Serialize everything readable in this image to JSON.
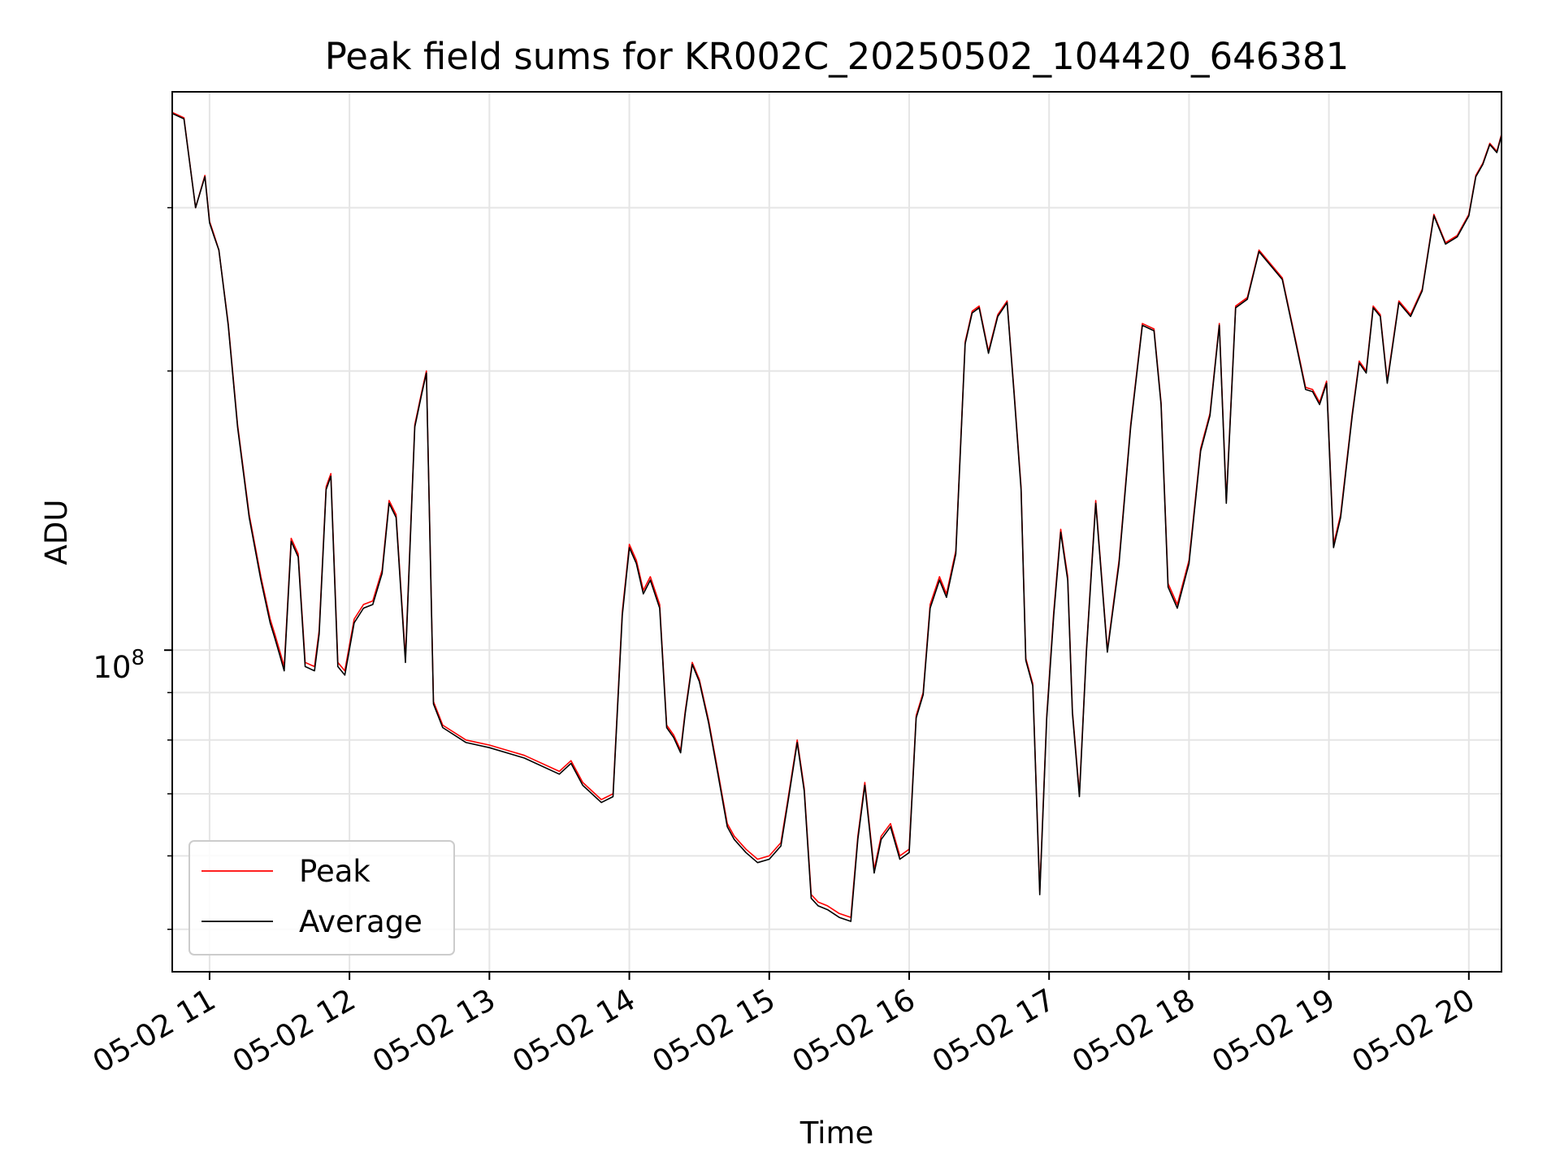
{
  "chart_data": {
    "type": "line",
    "title": "Peak field sums for KR002C_20250502_104420_646381",
    "xlabel": "Time",
    "ylabel": "ADU",
    "yscale": "log",
    "ylim": [
      45000000,
      400000000
    ],
    "xlim": [
      "05-02 10:44",
      "05-02 20:14"
    ],
    "grid": true,
    "legend_position": "lower-left",
    "x_tick_labels": [
      "05-02 11",
      "05-02 12",
      "05-02 13",
      "05-02 14",
      "05-02 15",
      "05-02 16",
      "05-02 17",
      "05-02 18",
      "05-02 19",
      "05-02 20"
    ],
    "y_tick_label": {
      "base": "10",
      "exponent": "8"
    },
    "colors": {
      "peak": "#ff0000",
      "average": "#000000",
      "grid": "#e5e5e5"
    },
    "x": [
      "05-02 10:44",
      "05-02 10:49",
      "05-02 10:54",
      "05-02 10:58",
      "05-02 11:00",
      "05-02 11:02",
      "05-02 11:04",
      "05-02 11:08",
      "05-02 11:12",
      "05-02 11:17",
      "05-02 11:22",
      "05-02 11:26",
      "05-02 11:28",
      "05-02 11:30",
      "05-02 11:32",
      "05-02 11:35",
      "05-02 11:38",
      "05-02 11:41",
      "05-02 11:45",
      "05-02 11:47",
      "05-02 11:50",
      "05-02 11:52",
      "05-02 11:55",
      "05-02 11:58",
      "05-02 12:02",
      "05-02 12:06",
      "05-02 12:10",
      "05-02 12:14",
      "05-02 12:17",
      "05-02 12:20",
      "05-02 12:24",
      "05-02 12:28",
      "05-02 12:31",
      "05-02 12:33",
      "05-02 12:36",
      "05-02 12:40",
      "05-02 12:50",
      "05-02 13:00",
      "05-02 13:15",
      "05-02 13:30",
      "05-02 13:35",
      "05-02 13:40",
      "05-02 13:48",
      "05-02 13:53",
      "05-02 13:57",
      "05-02 14:00",
      "05-02 14:03",
      "05-02 14:06",
      "05-02 14:09",
      "05-02 14:13",
      "05-02 14:16",
      "05-02 14:19",
      "05-02 14:22",
      "05-02 14:24",
      "05-02 14:27",
      "05-02 14:30",
      "05-02 14:34",
      "05-02 14:38",
      "05-02 14:42",
      "05-02 14:45",
      "05-02 14:50",
      "05-02 14:55",
      "05-02 15:00",
      "05-02 15:05",
      "05-02 15:08",
      "05-02 15:12",
      "05-02 15:15",
      "05-02 15:18",
      "05-02 15:21",
      "05-02 15:25",
      "05-02 15:30",
      "05-02 15:35",
      "05-02 15:38",
      "05-02 15:41",
      "05-02 15:45",
      "05-02 15:48",
      "05-02 15:52",
      "05-02 15:56",
      "05-02 16:00",
      "05-02 16:03",
      "05-02 16:06",
      "05-02 16:09",
      "05-02 16:13",
      "05-02 16:16",
      "05-02 16:20",
      "05-02 16:24",
      "05-02 16:27",
      "05-02 16:30",
      "05-02 16:34",
      "05-02 16:38",
      "05-02 16:42",
      "05-02 16:45",
      "05-02 16:48",
      "05-02 16:50",
      "05-02 16:53",
      "05-02 16:56",
      "05-02 16:59",
      "05-02 17:02",
      "05-02 17:05",
      "05-02 17:08",
      "05-02 17:10",
      "05-02 17:13",
      "05-02 17:16",
      "05-02 17:20",
      "05-02 17:25",
      "05-02 17:30",
      "05-02 17:35",
      "05-02 17:40",
      "05-02 17:45",
      "05-02 17:48",
      "05-02 17:51",
      "05-02 17:55",
      "05-02 18:00",
      "05-02 18:05",
      "05-02 18:09",
      "05-02 18:13",
      "05-02 18:16",
      "05-02 18:20",
      "05-02 18:25",
      "05-02 18:30",
      "05-02 18:40",
      "05-02 18:45",
      "05-02 18:50",
      "05-02 18:53",
      "05-02 18:56",
      "05-02 18:59",
      "05-02 19:02",
      "05-02 19:05",
      "05-02 19:10",
      "05-02 19:13",
      "05-02 19:16",
      "05-02 19:19",
      "05-02 19:22",
      "05-02 19:25",
      "05-02 19:30",
      "05-02 19:35",
      "05-02 19:40",
      "05-02 19:45",
      "05-02 19:50",
      "05-02 19:55",
      "05-02 20:00",
      "05-02 20:03",
      "05-02 20:06",
      "05-02 20:09",
      "05-02 20:12",
      "05-02 20:14"
    ],
    "series": [
      {
        "name": "Peak",
        "values": [
          380000000,
          375000000,
          300000000,
          325000000,
          290000000,
          280000000,
          270000000,
          225000000,
          175000000,
          140000000,
          120000000,
          108000000,
          104000000,
          100000000,
          96000000,
          132000000,
          127000000,
          97000000,
          96000000,
          105000000,
          150000000,
          155000000,
          97000000,
          95000000,
          108000000,
          112000000,
          113000000,
          122000000,
          145000000,
          140000000,
          98000000,
          175000000,
          190000000,
          200000000,
          88000000,
          83000000,
          80000000,
          79000000,
          77000000,
          74000000,
          76000000,
          72000000,
          69000000,
          70000000,
          110000000,
          130000000,
          125000000,
          116000000,
          120000000,
          112000000,
          83000000,
          81000000,
          78000000,
          86000000,
          97000000,
          93000000,
          84000000,
          74000000,
          65000000,
          63000000,
          61000000,
          59500000,
          60000000,
          62000000,
          69000000,
          80000000,
          71000000,
          54500000,
          53500000,
          53000000,
          52000000,
          51500000,
          63000000,
          72000000,
          58000000,
          63000000,
          65000000,
          60000000,
          61000000,
          85000000,
          90000000,
          112000000,
          120000000,
          115000000,
          128000000,
          215000000,
          232000000,
          235000000,
          210000000,
          230000000,
          238000000,
          190000000,
          150000000,
          98000000,
          92000000,
          55000000,
          85000000,
          110000000,
          135000000,
          120000000,
          86000000,
          70000000,
          100000000,
          145000000,
          100000000,
          125000000,
          175000000,
          225000000,
          222000000,
          185000000,
          118000000,
          112000000,
          125000000,
          165000000,
          180000000,
          225000000,
          145000000,
          235000000,
          240000000,
          270000000,
          252000000,
          220000000,
          192000000,
          191000000,
          185000000,
          195000000,
          130000000,
          140000000,
          180000000,
          205000000,
          200000000,
          235000000,
          230000000,
          195000000,
          238000000,
          230000000,
          245000000,
          295000000,
          275000000,
          280000000,
          295000000,
          325000000,
          335000000,
          352000000,
          345000000,
          360000000
        ],
        "color": "#ff0000"
      },
      {
        "name": "Average",
        "values": [
          379000000,
          374000000,
          300000000,
          324000000,
          289000000,
          279000000,
          270000000,
          224000000,
          174000000,
          139000000,
          119000000,
          107000000,
          103000000,
          99000000,
          95000000,
          131000000,
          126000000,
          96000000,
          95000000,
          104000000,
          149000000,
          154000000,
          96000000,
          94000000,
          107000000,
          111000000,
          112000000,
          121000000,
          144000000,
          139000000,
          97000000,
          174000000,
          189000000,
          199000000,
          87500000,
          82500000,
          79500000,
          78500000,
          76500000,
          73500000,
          75500000,
          71500000,
          68500000,
          69500000,
          109000000,
          129000000,
          124000000,
          115000000,
          119000000,
          111000000,
          82500000,
          80500000,
          77500000,
          85500000,
          96500000,
          92500000,
          83500000,
          73500000,
          64500000,
          62500000,
          60500000,
          59000000,
          59500000,
          61500000,
          68500000,
          79500000,
          70500000,
          54000000,
          53000000,
          52500000,
          51500000,
          51000000,
          62500000,
          71500000,
          57500000,
          62500000,
          64500000,
          59500000,
          60500000,
          84500000,
          89500000,
          111000000,
          119000000,
          114000000,
          127000000,
          214000000,
          231000000,
          234000000,
          209000000,
          229000000,
          237000000,
          189000000,
          149000000,
          97500000,
          91500000,
          54500000,
          84500000,
          109000000,
          134000000,
          119000000,
          85500000,
          69500000,
          99500000,
          144000000,
          99500000,
          124000000,
          174000000,
          224000000,
          221000000,
          184000000,
          117000000,
          111000000,
          124000000,
          164000000,
          179000000,
          224000000,
          144000000,
          234000000,
          239000000,
          269000000,
          251000000,
          219000000,
          191000000,
          190000000,
          184000000,
          194000000,
          129000000,
          139000000,
          179000000,
          204000000,
          199000000,
          234000000,
          229000000,
          194000000,
          237000000,
          229000000,
          244000000,
          294000000,
          274000000,
          279000000,
          294000000,
          324000000,
          334000000,
          351000000,
          344000000,
          359000000
        ],
        "color": "#000000"
      }
    ]
  }
}
